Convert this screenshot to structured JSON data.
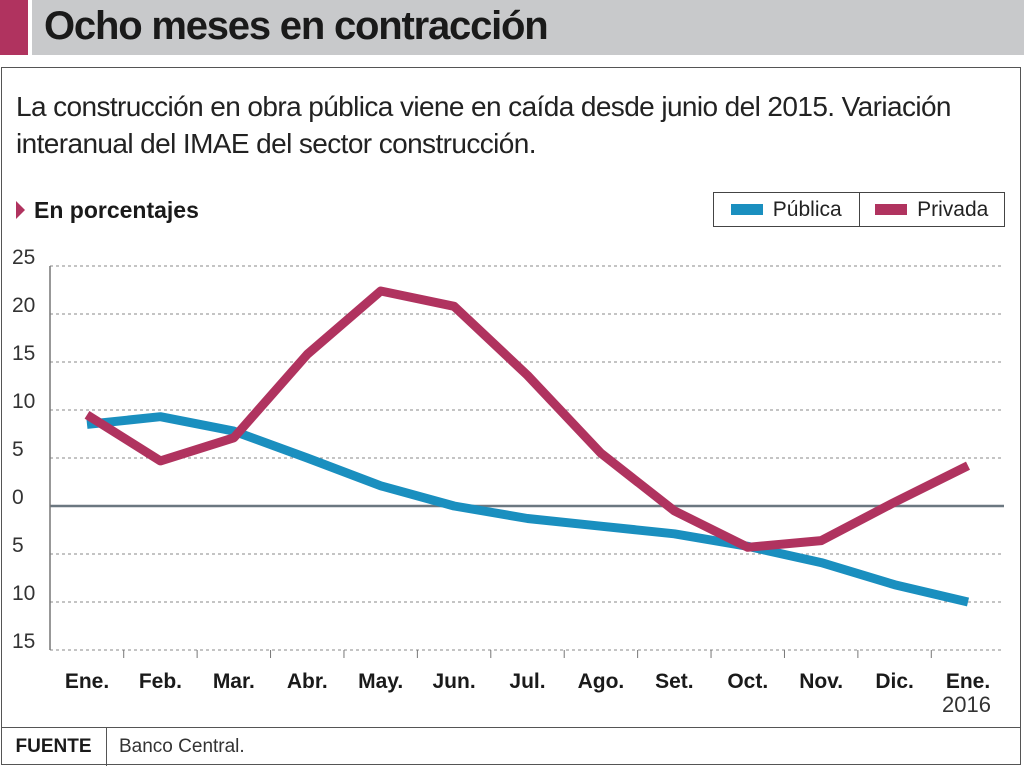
{
  "header": {
    "title": "Ocho meses en contracción"
  },
  "subtitle": "La construcción en obra pública viene en caída desde junio del 2015. Variación interanual del IMAE del sector construcción.",
  "unit_label": "En porcentajes",
  "footer": {
    "source_key": "FUENTE",
    "source_value": "Banco Central."
  },
  "colors": {
    "publica": "#1a8fbf",
    "privada": "#b0335f",
    "accent": "#b0335f",
    "header_bg": "#c8c9cb"
  },
  "chart_data": {
    "type": "line",
    "categories": [
      "Ene.",
      "Feb.",
      "Mar.",
      "Abr.",
      "May.",
      "Jun.",
      "Jul.",
      "Ago.",
      "Set.",
      "Oct.",
      "Nov.",
      "Dic.",
      "Ene."
    ],
    "year_label": "2016",
    "series": [
      {
        "name": "Pública",
        "color": "#1a8fbf",
        "values": [
          8.5,
          9.3,
          7.8,
          5.0,
          2.1,
          0.0,
          -1.3,
          -2.1,
          -2.9,
          -4.2,
          -5.9,
          -8.2,
          -10.0
        ]
      },
      {
        "name": "Privada",
        "color": "#b0335f",
        "values": [
          9.5,
          4.7,
          7.1,
          15.8,
          22.4,
          20.8,
          13.6,
          5.5,
          -0.5,
          -4.3,
          -3.6,
          0.4,
          4.2
        ]
      }
    ],
    "ylim": [
      -15,
      25
    ],
    "yticks": [
      25,
      20,
      15,
      10,
      5,
      0,
      -5,
      -10,
      -15
    ],
    "ytick_labels": [
      "25",
      "20",
      "15",
      "10",
      "5",
      "0",
      "5",
      "10",
      "15"
    ],
    "grid": "dashed-horizontal",
    "legend": "top-right",
    "xlabel": "",
    "ylabel": "En porcentajes"
  }
}
